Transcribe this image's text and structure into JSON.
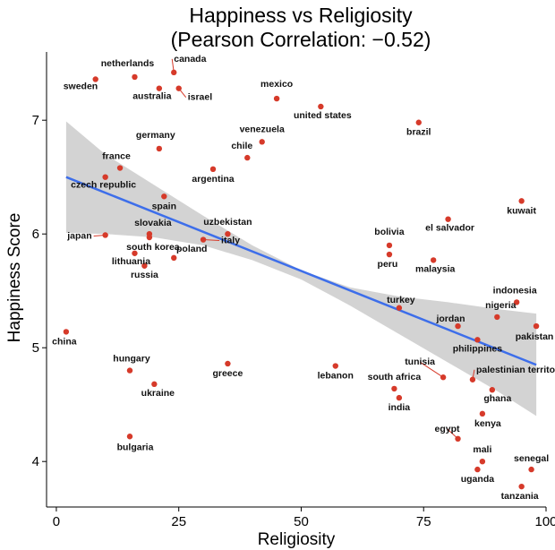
{
  "chart_data": {
    "type": "scatter",
    "title": "Happiness vs Religiosity",
    "subtitle": "(Pearson Correlation: −0.52)",
    "xlabel": "Religiosity",
    "ylabel": "Happiness Score",
    "xlim": [
      -2,
      100
    ],
    "ylim": [
      3.6,
      7.6
    ],
    "x_ticks": [
      0,
      25,
      50,
      75,
      100
    ],
    "y_ticks": [
      4,
      5,
      6,
      7
    ],
    "grid": false,
    "point_color": "#d63a2a",
    "line_color": "#3d6eea",
    "band_color": "#d3d3d3",
    "regression": {
      "x": [
        2,
        98
      ],
      "y": [
        6.5,
        4.85
      ]
    },
    "confidence_band": {
      "x": [
        2,
        10,
        20,
        30,
        40,
        50,
        60,
        70,
        80,
        90,
        98
      ],
      "upper": [
        6.99,
        6.7,
        6.43,
        6.16,
        5.9,
        5.68,
        5.53,
        5.45,
        5.4,
        5.34,
        5.3
      ],
      "lower": [
        6.01,
        6.0,
        5.97,
        5.9,
        5.77,
        5.6,
        5.37,
        5.12,
        4.87,
        4.62,
        4.4
      ]
    },
    "points": [
      {
        "label": "canada",
        "x": 24,
        "y": 7.42
      },
      {
        "label": "netherlands",
        "x": 16,
        "y": 7.38
      },
      {
        "label": "sweden",
        "x": 8,
        "y": 7.36
      },
      {
        "label": "australia",
        "x": 21,
        "y": 7.28
      },
      {
        "label": "israel",
        "x": 25,
        "y": 7.28
      },
      {
        "label": "mexico",
        "x": 45,
        "y": 7.19
      },
      {
        "label": "united states",
        "x": 54,
        "y": 7.12
      },
      {
        "label": "brazil",
        "x": 74,
        "y": 6.98
      },
      {
        "label": "venezuela",
        "x": 42,
        "y": 6.81
      },
      {
        "label": "germany",
        "x": 21,
        "y": 6.75
      },
      {
        "label": "chile",
        "x": 39,
        "y": 6.67
      },
      {
        "label": "france",
        "x": 13,
        "y": 6.58
      },
      {
        "label": "argentina",
        "x": 32,
        "y": 6.57
      },
      {
        "label": "czech republic",
        "x": 10,
        "y": 6.5
      },
      {
        "label": "spain",
        "x": 22,
        "y": 6.33
      },
      {
        "label": "kuwait",
        "x": 95,
        "y": 6.29
      },
      {
        "label": "el salvador",
        "x": 80,
        "y": 6.13
      },
      {
        "label": "uzbekistan",
        "x": 35,
        "y": 6.0
      },
      {
        "label": "slovakia",
        "x": 19,
        "y": 6.0
      },
      {
        "label": "japan",
        "x": 10,
        "y": 5.99
      },
      {
        "label": "south korea",
        "x": 19,
        "y": 5.97
      },
      {
        "label": "italy",
        "x": 30,
        "y": 5.95
      },
      {
        "label": "bolivia",
        "x": 68,
        "y": 5.9
      },
      {
        "label": "lithuania",
        "x": 16,
        "y": 5.83
      },
      {
        "label": "peru",
        "x": 68,
        "y": 5.82
      },
      {
        "label": "poland",
        "x": 24,
        "y": 5.79
      },
      {
        "label": "malaysia",
        "x": 77,
        "y": 5.77
      },
      {
        "label": "russia",
        "x": 18,
        "y": 5.72
      },
      {
        "label": "indonesia",
        "x": 94,
        "y": 5.4
      },
      {
        "label": "turkey",
        "x": 70,
        "y": 5.35
      },
      {
        "label": "nigeria",
        "x": 90,
        "y": 5.27
      },
      {
        "label": "jordan",
        "x": 82,
        "y": 5.19
      },
      {
        "label": "pakistan",
        "x": 98,
        "y": 5.19
      },
      {
        "label": "china",
        "x": 2,
        "y": 5.14
      },
      {
        "label": "philippines",
        "x": 86,
        "y": 5.07
      },
      {
        "label": "hungary",
        "x": 15,
        "y": 4.8
      },
      {
        "label": "greece",
        "x": 35,
        "y": 4.86
      },
      {
        "label": "lebanon",
        "x": 57,
        "y": 4.84
      },
      {
        "label": "tunisia",
        "x": 79,
        "y": 4.74
      },
      {
        "label": "palestinian territories",
        "x": 85,
        "y": 4.72
      },
      {
        "label": "ukraine",
        "x": 20,
        "y": 4.68
      },
      {
        "label": "south africa",
        "x": 69,
        "y": 4.64
      },
      {
        "label": "ghana",
        "x": 89,
        "y": 4.63
      },
      {
        "label": "india",
        "x": 70,
        "y": 4.56
      },
      {
        "label": "kenya",
        "x": 87,
        "y": 4.42
      },
      {
        "label": "bulgaria",
        "x": 15,
        "y": 4.22
      },
      {
        "label": "egypt",
        "x": 82,
        "y": 4.2
      },
      {
        "label": "mali",
        "x": 87,
        "y": 4.0
      },
      {
        "label": "senegal",
        "x": 97,
        "y": 3.93
      },
      {
        "label": "uganda",
        "x": 86,
        "y": 3.93
      },
      {
        "label": "tanzania",
        "x": 95,
        "y": 3.78
      }
    ]
  }
}
